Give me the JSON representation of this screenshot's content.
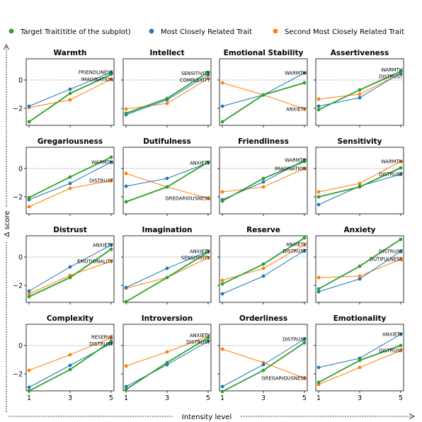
{
  "legend": [
    {
      "label": "Target Trait(title of the subplot)",
      "color": "#2ca02c"
    },
    {
      "label": "Most Closely Related Trait",
      "color": "#1f77b4"
    },
    {
      "label": "Second Most Closely Related Trait",
      "color": "#ff7f0e"
    }
  ],
  "axis_labels": {
    "x": "Intensity level",
    "y": "Δ score"
  },
  "chart_data": {
    "type": "line",
    "layout": "4x4 grid of subplots, shared axes",
    "x_ticks": [
      1,
      3,
      5
    ],
    "y_ticks": [
      0,
      -2
    ],
    "ylim": [
      -3.2,
      1.5
    ],
    "reference_line_y": 0,
    "series_colors": {
      "target": "#2ca02c",
      "most": "#1f77b4",
      "second": "#ff7f0e"
    },
    "panels": [
      {
        "title": "Warmth",
        "target": [
          -2.95,
          -0.95,
          0.4
        ],
        "most": {
          "name": "FRIENDLINESS",
          "values": [
            -1.85,
            -0.65,
            0.55
          ]
        },
        "second": {
          "name": "IMAGINATION",
          "values": [
            -1.95,
            -1.4,
            0.05
          ]
        }
      },
      {
        "title": "Intellect",
        "target": [
          -2.35,
          -1.3,
          0.55
        ],
        "most": {
          "name": "SENSITIVITY",
          "values": [
            -2.45,
            -1.4,
            0.35
          ]
        },
        "second": {
          "name": "COMPLEXITY",
          "values": [
            -2.05,
            -1.65,
            0.1
          ]
        }
      },
      {
        "title": "Emotional Stability",
        "target": [
          -2.95,
          -1.05,
          -0.2
        ],
        "most": {
          "name": "WARMTH",
          "values": [
            -1.85,
            -1.05,
            0.5
          ]
        },
        "second": {
          "name": "ANXIETY",
          "values": [
            -0.2,
            -1.05,
            -2.05
          ]
        }
      },
      {
        "title": "Assertiveness",
        "target": [
          -2.1,
          -0.7,
          0.6
        ],
        "most": {
          "name": "WARMTH",
          "values": [
            -1.85,
            -1.25,
            0.5
          ]
        },
        "second": {
          "name": "DISTRUST",
          "values": [
            -1.35,
            -1.0,
            0.45
          ]
        }
      },
      {
        "title": "Gregariousness",
        "target": [
          -2.05,
          -0.6,
          0.8
        ],
        "most": {
          "name": "WARMTH",
          "values": [
            -2.2,
            -1.05,
            0.45
          ]
        },
        "second": {
          "name": "DISTRUST",
          "values": [
            -2.7,
            -1.4,
            -0.85
          ]
        }
      },
      {
        "title": "Dutifulness",
        "target": [
          -2.35,
          -1.3,
          0.45
        ],
        "most": {
          "name": "ANXIETY",
          "values": [
            -1.25,
            -0.7,
            0.4
          ]
        },
        "second": {
          "name": "GREGARIOUSNESS",
          "values": [
            -0.35,
            -1.3,
            -2.1
          ]
        }
      },
      {
        "title": "Friendliness",
        "target": [
          -2.3,
          -0.7,
          0.5
        ],
        "most": {
          "name": "WARMTH",
          "values": [
            -2.2,
            -0.95,
            0.6
          ]
        },
        "second": {
          "name": "IMAGINATION",
          "values": [
            -1.65,
            -1.3,
            0.0
          ]
        }
      },
      {
        "title": "Sensitivity",
        "target": [
          -2.0,
          -1.3,
          0.05
        ],
        "most": {
          "name": "DISTRUST",
          "values": [
            -2.55,
            -1.25,
            -0.4
          ]
        },
        "second": {
          "name": "WARMTH",
          "values": [
            -1.65,
            -1.05,
            0.5
          ]
        }
      },
      {
        "title": "Distrust",
        "target": [
          -2.8,
          -1.45,
          0.55
        ],
        "most": {
          "name": "ANXIETY",
          "values": [
            -2.4,
            -0.7,
            0.85
          ]
        },
        "second": {
          "name": "EMOTIONALITY",
          "values": [
            -2.6,
            -1.3,
            -0.3
          ]
        }
      },
      {
        "title": "Imagination",
        "target": [
          -3.15,
          -1.45,
          0.35
        ],
        "most": {
          "name": "ANXIETY",
          "values": [
            -2.15,
            -0.8,
            0.4
          ]
        },
        "second": {
          "name": "SENSITIVITY",
          "values": [
            -2.2,
            -1.45,
            -0.05
          ]
        }
      },
      {
        "title": "Reserve",
        "target": [
          -1.9,
          -0.5,
          1.35
        ],
        "most": {
          "name": "DISTRUST",
          "values": [
            -2.6,
            -1.35,
            0.45
          ]
        },
        "second": {
          "name": "ANXIETY",
          "values": [
            -1.65,
            -0.8,
            0.85
          ]
        }
      },
      {
        "title": "Anxiety",
        "target": [
          -2.25,
          -0.65,
          1.25
        ],
        "most": {
          "name": "DISTRUST",
          "values": [
            -2.45,
            -1.55,
            0.4
          ]
        },
        "second": {
          "name": "DUTIFULNESS",
          "values": [
            -1.45,
            -1.35,
            -0.15
          ]
        }
      },
      {
        "title": "Complexity",
        "target": [
          -3.2,
          -1.7,
          0.3
        ],
        "most": {
          "name": "DISTRUST",
          "values": [
            -2.95,
            -1.4,
            0.15
          ]
        },
        "second": {
          "name": "RESERVE",
          "values": [
            -1.75,
            -0.65,
            0.55
          ]
        }
      },
      {
        "title": "Introversion",
        "target": [
          -3.1,
          -1.2,
          0.55
        ],
        "most": {
          "name": "DISTRUST",
          "values": [
            -2.9,
            -1.35,
            0.3
          ]
        },
        "second": {
          "name": "ANXIETY",
          "values": [
            -1.45,
            -0.45,
            0.65
          ]
        }
      },
      {
        "title": "Orderliness",
        "target": [
          -3.25,
          -1.75,
          0.2
        ],
        "most": {
          "name": "DISTRUST",
          "values": [
            -2.9,
            -1.35,
            0.45
          ]
        },
        "second": {
          "name": "GREGARIOUSNESS",
          "values": [
            -0.25,
            -1.2,
            -2.3
          ]
        }
      },
      {
        "title": "Emotionality",
        "target": [
          -2.6,
          -1.05,
          0.0
        ],
        "most": {
          "name": "ANXIETY",
          "values": [
            -1.55,
            -0.9,
            0.8
          ]
        },
        "second": {
          "name": "DISTRUST",
          "values": [
            -2.75,
            -1.55,
            -0.35
          ]
        }
      }
    ]
  }
}
